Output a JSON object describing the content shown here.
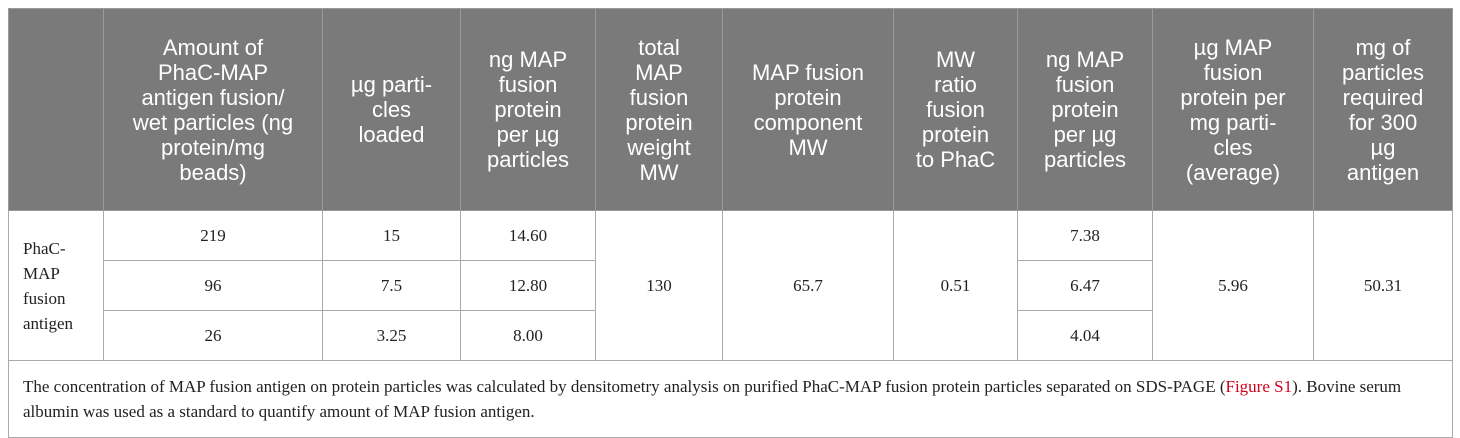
{
  "table": {
    "header": [
      "",
      "Amount of\nPhaC-MAP\nantigen fusion/\nwet particles (ng\nprotein/mg\nbeads)",
      "µg parti-\ncles\nloaded",
      "ng MAP\nfusion\nprotein\nper µg\nparticles",
      "total\nMAP\nfusion\nprotein\nweight\nMW",
      "MAP fusion\nprotein\ncomponent\nMW",
      "MW\nratio\nfusion\nprotein\nto PhaC",
      "ng MAP\nfusion\nprotein\nper µg\nparticles",
      "µg MAP\nfusion\nprotein per\nmg parti-\ncles\n(average)",
      "mg of\nparticles\nrequired\nfor 300\nµg\nantigen"
    ],
    "row_label": "PhaC-\nMAP\nfusion\nantigen",
    "rows": [
      [
        "219",
        "15",
        "14.60",
        "7.38"
      ],
      [
        "96",
        "7.5",
        "12.80",
        "6.47"
      ],
      [
        "26",
        "3.25",
        "8.00",
        "4.04"
      ]
    ],
    "merged": [
      "130",
      "65.7",
      "0.51",
      "5.96",
      "50.31"
    ],
    "footnote": {
      "before": "The concentration of MAP fusion antigen on protein particles was calculated by densitometry analysis on purified PhaC-MAP fusion protein particles separated on SDS-PAGE (",
      "link": "Figure S1",
      "after": "). Bovine serum albumin was used as a standard to quantify amount of MAP fusion antigen."
    }
  }
}
